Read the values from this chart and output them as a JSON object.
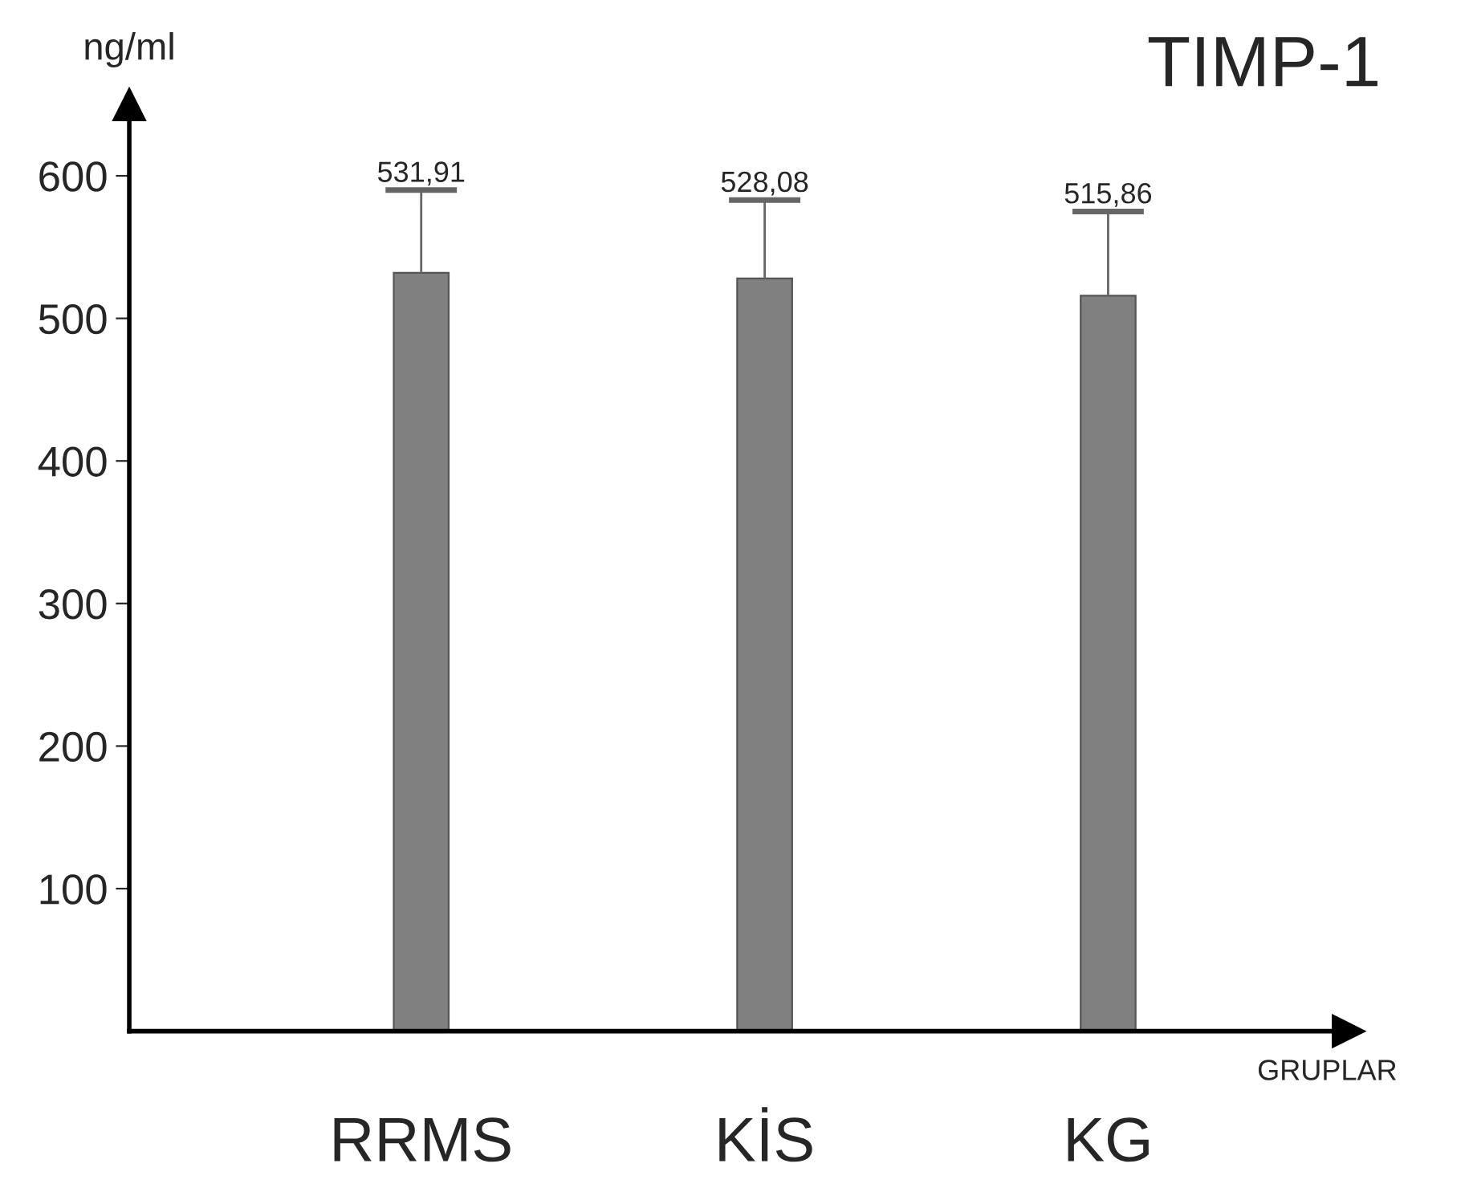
{
  "chart_data": {
    "type": "bar",
    "title": "TIMP-1",
    "xlabel": "GRUPLAR",
    "ylabel": "ng/ml",
    "categories": [
      "RRMS",
      "KİS",
      "KG"
    ],
    "values": [
      531.91,
      528.08,
      515.86
    ],
    "value_labels": [
      "531,91",
      "528,08",
      "515,86"
    ],
    "errors": [
      [
        531.91,
        590
      ],
      [
        528.08,
        583
      ],
      [
        515.86,
        575
      ]
    ],
    "color": "#808080",
    "ylim": [
      0,
      650
    ],
    "yticks": [
      100,
      200,
      300,
      400,
      500,
      600
    ],
    "grid": false,
    "legend": false
  }
}
